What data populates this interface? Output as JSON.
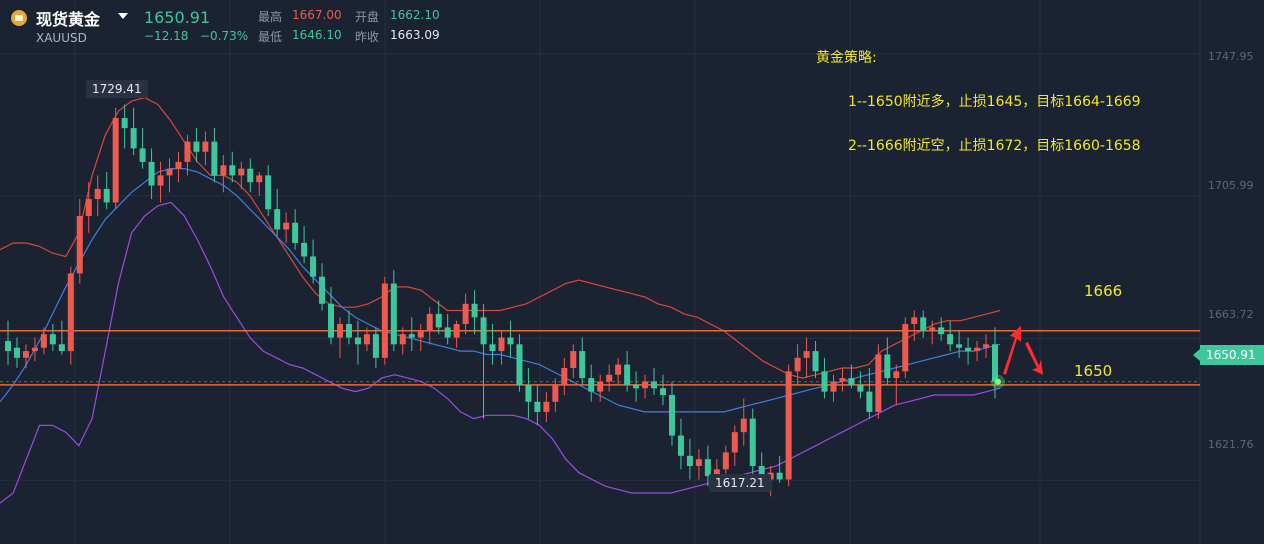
{
  "header": {
    "name": "现货黄金",
    "symbol": "XAUUSD",
    "price": "1650.91",
    "change": "−12.18",
    "change_pct": "−0.73%",
    "high_label": "最高",
    "high_value": "1667.00",
    "open_label": "开盘",
    "open_value": "1662.10",
    "low_label": "最低",
    "low_value": "1646.10",
    "prev_label": "昨收",
    "prev_value": "1663.09"
  },
  "annotations": {
    "strategy_title": "黄金策略:",
    "strategy_1": "1--1650附近多，止损1645，目标1664-1669",
    "strategy_2": "2--1666附近空，止损1672，目标1660-1658",
    "level_high_text": "1666",
    "level_low_text": "1650",
    "peak_tag": "1729.41",
    "trough_tag": "1617.21",
    "current_tag": "1650.91"
  },
  "colors": {
    "up": "#ef5a4f",
    "down": "#3fc79c",
    "upper_band": "#d6493a",
    "mid_band": "#3f7fe0",
    "lower_band": "#9a4ee0",
    "level_line": "#e86a3a",
    "strategy_text": "#f2ea1d",
    "arrow": "#ff2d2d"
  },
  "chart_data": {
    "type": "candlestick",
    "ylim": [
      1610,
      1758
    ],
    "y_ticks": [
      "1747.95",
      "1705.99",
      "1663.72",
      "1621.76"
    ],
    "y_tick_values": [
      1747.95,
      1705.99,
      1663.72,
      1621.76
    ],
    "horizontal_levels": [
      1666,
      1650
    ],
    "peak": 1729.41,
    "trough": 1617.21,
    "last_price": 1650.91,
    "candles": [
      [
        1663,
        1669,
        1656,
        1660
      ],
      [
        1661,
        1664,
        1655,
        1658
      ],
      [
        1658,
        1662,
        1655,
        1660
      ],
      [
        1660,
        1664,
        1657,
        1661
      ],
      [
        1661,
        1667,
        1659,
        1665
      ],
      [
        1665,
        1668,
        1660,
        1662
      ],
      [
        1662,
        1669,
        1659,
        1660
      ],
      [
        1660,
        1685,
        1656,
        1683
      ],
      [
        1683,
        1705,
        1680,
        1700
      ],
      [
        1700,
        1710,
        1695,
        1705
      ],
      [
        1705,
        1712,
        1700,
        1708
      ],
      [
        1708,
        1713,
        1702,
        1704
      ],
      [
        1704,
        1732,
        1702,
        1729
      ],
      [
        1729,
        1733,
        1720,
        1726
      ],
      [
        1726,
        1732,
        1718,
        1720
      ],
      [
        1720,
        1726,
        1714,
        1716
      ],
      [
        1716,
        1720,
        1705,
        1709
      ],
      [
        1709,
        1716,
        1704,
        1712
      ],
      [
        1712,
        1717,
        1707,
        1714
      ],
      [
        1714,
        1719,
        1710,
        1716
      ],
      [
        1716,
        1724,
        1712,
        1722
      ],
      [
        1722,
        1726,
        1716,
        1719
      ],
      [
        1719,
        1725,
        1715,
        1722
      ],
      [
        1722,
        1726,
        1710,
        1712
      ],
      [
        1712,
        1718,
        1707,
        1715
      ],
      [
        1715,
        1719,
        1710,
        1712
      ],
      [
        1712,
        1716,
        1708,
        1714
      ],
      [
        1714,
        1717,
        1707,
        1710
      ],
      [
        1710,
        1713,
        1706,
        1712
      ],
      [
        1712,
        1715,
        1700,
        1702
      ],
      [
        1702,
        1708,
        1694,
        1696
      ],
      [
        1696,
        1701,
        1692,
        1698
      ],
      [
        1698,
        1702,
        1690,
        1692
      ],
      [
        1692,
        1697,
        1686,
        1688
      ],
      [
        1688,
        1693,
        1680,
        1682
      ],
      [
        1682,
        1686,
        1672,
        1674
      ],
      [
        1674,
        1679,
        1662,
        1664
      ],
      [
        1664,
        1670,
        1658,
        1668
      ],
      [
        1668,
        1672,
        1662,
        1664
      ],
      [
        1664,
        1669,
        1656,
        1662
      ],
      [
        1662,
        1667,
        1660,
        1665
      ],
      [
        1665,
        1667,
        1655,
        1658
      ],
      [
        1658,
        1682,
        1656,
        1680
      ],
      [
        1680,
        1684,
        1660,
        1662
      ],
      [
        1662,
        1667,
        1659,
        1665
      ],
      [
        1665,
        1670,
        1660,
        1664
      ],
      [
        1664,
        1668,
        1660,
        1666
      ],
      [
        1666,
        1673,
        1662,
        1671
      ],
      [
        1671,
        1675,
        1665,
        1667
      ],
      [
        1667,
        1671,
        1662,
        1664
      ],
      [
        1664,
        1669,
        1661,
        1668
      ],
      [
        1668,
        1677,
        1665,
        1674
      ],
      [
        1674,
        1678,
        1665,
        1670
      ],
      [
        1670,
        1674,
        1640,
        1662
      ],
      [
        1662,
        1668,
        1656,
        1660
      ],
      [
        1660,
        1666,
        1656,
        1664
      ],
      [
        1664,
        1669,
        1658,
        1662
      ],
      [
        1662,
        1665,
        1648,
        1650
      ],
      [
        1650,
        1655,
        1640,
        1645
      ],
      [
        1645,
        1650,
        1638,
        1642
      ],
      [
        1642,
        1648,
        1639,
        1645
      ],
      [
        1645,
        1652,
        1642,
        1650
      ],
      [
        1650,
        1658,
        1647,
        1655
      ],
      [
        1655,
        1662,
        1652,
        1660
      ],
      [
        1660,
        1664,
        1650,
        1652
      ],
      [
        1652,
        1656,
        1645,
        1648
      ],
      [
        1648,
        1653,
        1645,
        1651
      ],
      [
        1651,
        1656,
        1648,
        1653
      ],
      [
        1653,
        1658,
        1650,
        1656
      ],
      [
        1656,
        1660,
        1648,
        1650
      ],
      [
        1650,
        1654,
        1645,
        1649
      ],
      [
        1649,
        1653,
        1646,
        1651
      ],
      [
        1651,
        1655,
        1647,
        1649
      ],
      [
        1649,
        1653,
        1644,
        1647
      ],
      [
        1647,
        1651,
        1632,
        1635
      ],
      [
        1635,
        1640,
        1625,
        1629
      ],
      [
        1629,
        1634,
        1622,
        1626
      ],
      [
        1626,
        1631,
        1622,
        1628
      ],
      [
        1628,
        1632,
        1620,
        1623
      ],
      [
        1623,
        1628,
        1619,
        1625
      ],
      [
        1625,
        1632,
        1622,
        1630
      ],
      [
        1630,
        1638,
        1626,
        1636
      ],
      [
        1636,
        1646,
        1632,
        1640
      ],
      [
        1640,
        1643,
        1622,
        1626
      ],
      [
        1626,
        1630,
        1620,
        1622
      ],
      [
        1622,
        1626,
        1617,
        1624
      ],
      [
        1624,
        1629,
        1621,
        1622
      ],
      [
        1622,
        1656,
        1620,
        1654
      ],
      [
        1654,
        1662,
        1650,
        1658
      ],
      [
        1658,
        1664,
        1652,
        1660
      ],
      [
        1660,
        1663,
        1652,
        1654
      ],
      [
        1654,
        1658,
        1646,
        1648
      ],
      [
        1648,
        1653,
        1645,
        1651
      ],
      [
        1651,
        1655,
        1648,
        1652
      ],
      [
        1652,
        1656,
        1649,
        1650
      ],
      [
        1650,
        1654,
        1646,
        1648
      ],
      [
        1648,
        1655,
        1640,
        1642
      ],
      [
        1642,
        1662,
        1640,
        1659
      ],
      [
        1659,
        1664,
        1650,
        1652
      ],
      [
        1652,
        1656,
        1644,
        1654
      ],
      [
        1654,
        1670,
        1652,
        1668
      ],
      [
        1668,
        1672,
        1663,
        1670
      ],
      [
        1670,
        1672,
        1664,
        1666
      ],
      [
        1666,
        1669,
        1662,
        1667
      ],
      [
        1667,
        1670,
        1663,
        1665
      ],
      [
        1665,
        1669,
        1660,
        1662
      ],
      [
        1662,
        1666,
        1658,
        1661
      ],
      [
        1661,
        1664,
        1656,
        1660
      ],
      [
        1660,
        1663,
        1657,
        1661
      ],
      [
        1661,
        1665,
        1658,
        1662
      ],
      [
        1662,
        1667,
        1646,
        1651
      ]
    ],
    "upper_band": [
      1690,
      1692,
      1692,
      1691,
      1689,
      1688,
      1695,
      1712,
      1724,
      1731,
      1734,
      1735,
      1733,
      1728,
      1722,
      1716,
      1712,
      1712,
      1710,
      1706,
      1700,
      1694,
      1688,
      1682,
      1677,
      1674,
      1673,
      1673,
      1674,
      1676,
      1679,
      1679,
      1678,
      1675,
      1672,
      1672,
      1672,
      1672,
      1672,
      1673,
      1674,
      1676,
      1678,
      1680,
      1681,
      1680,
      1679,
      1678,
      1677,
      1676,
      1674,
      1673,
      1671,
      1670,
      1668,
      1666,
      1663,
      1660,
      1657,
      1655,
      1653,
      1652,
      1653,
      1654,
      1655,
      1655,
      1656,
      1660,
      1662,
      1664,
      1666,
      1668,
      1669,
      1669,
      1670,
      1671,
      1672
    ],
    "mid_band": [
      1645,
      1650,
      1656,
      1663,
      1671,
      1679,
      1686,
      1693,
      1699,
      1703,
      1707,
      1710,
      1713,
      1714,
      1714,
      1713,
      1711,
      1709,
      1706,
      1702,
      1698,
      1694,
      1690,
      1685,
      1681,
      1677,
      1673,
      1670,
      1668,
      1666,
      1665,
      1664,
      1663,
      1662,
      1661,
      1660,
      1660,
      1659,
      1659,
      1658,
      1657,
      1656,
      1654,
      1652,
      1650,
      1648,
      1646,
      1644,
      1643,
      1642,
      1642,
      1642,
      1642,
      1642,
      1642,
      1642,
      1643,
      1644,
      1645,
      1646,
      1647,
      1648,
      1649,
      1650,
      1651,
      1652,
      1653,
      1654,
      1655,
      1656,
      1657,
      1658,
      1659,
      1660,
      1660,
      1661,
      1662
    ],
    "lower_band": [
      1615,
      1618,
      1628,
      1638,
      1638,
      1636,
      1632,
      1640,
      1660,
      1680,
      1695,
      1700,
      1703,
      1704,
      1700,
      1693,
      1685,
      1676,
      1670,
      1664,
      1660,
      1658,
      1656,
      1655,
      1653,
      1651,
      1649,
      1648,
      1649,
      1652,
      1653,
      1652,
      1651,
      1649,
      1646,
      1642,
      1640,
      1641,
      1641,
      1641,
      1640,
      1638,
      1634,
      1628,
      1624,
      1622,
      1620,
      1619,
      1618,
      1618,
      1618,
      1618,
      1619,
      1620,
      1621,
      1622,
      1623,
      1624,
      1625,
      1626,
      1628,
      1630,
      1632,
      1634,
      1636,
      1638,
      1640,
      1642,
      1644,
      1645,
      1646,
      1647,
      1647,
      1647,
      1647,
      1648,
      1649
    ]
  }
}
